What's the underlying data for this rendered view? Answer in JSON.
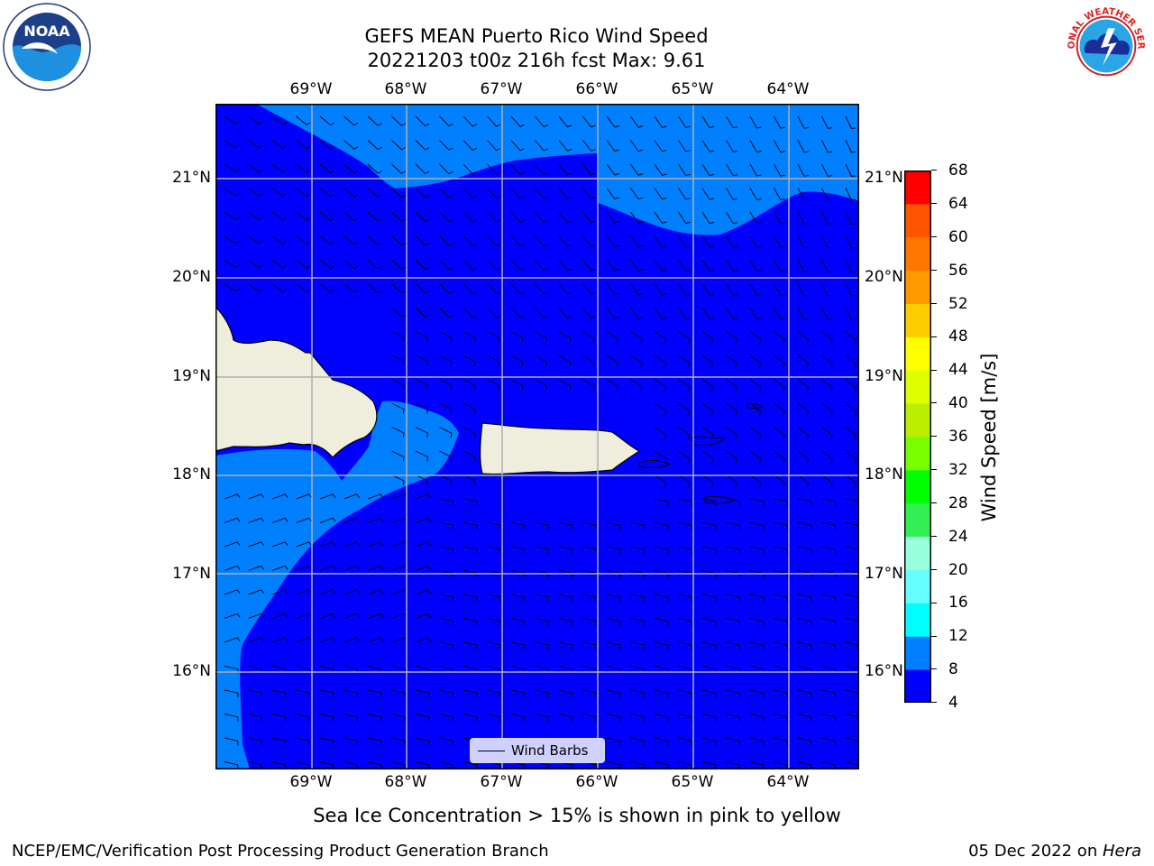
{
  "title": {
    "line1": "GEFS MEAN Puerto Rico Wind Speed",
    "line2": "20221203 t00z 216h fcst   Max: 9.61"
  },
  "map": {
    "lon_labels": [
      "69°W",
      "68°W",
      "67°W",
      "66°W",
      "65°W",
      "64°W"
    ],
    "lat_labels": [
      "21°N",
      "20°N",
      "19°N",
      "18°N",
      "17°N",
      "16°N"
    ],
    "extent": {
      "lon_min": -70.0,
      "lon_max": -63.25,
      "lat_min": 15.0,
      "lat_max": 21.75
    },
    "fill_colors": {
      "4-8": "#0000ff",
      "8-12": "#0080ff",
      "land": "#efeedd",
      "gridline": "#b0b0b0"
    },
    "legend_label": "Wind Barbs"
  },
  "colorbar": {
    "label": "Wind Speed [m/s]",
    "ticks": [
      "68",
      "64",
      "60",
      "56",
      "52",
      "48",
      "44",
      "40",
      "36",
      "32",
      "28",
      "24",
      "20",
      "16",
      "12",
      "8",
      "4"
    ],
    "colors": [
      "#0000ff",
      "#0080ff",
      "#00ffff",
      "#66ffff",
      "#99ffdd",
      "#33ee55",
      "#00ff00",
      "#77ff00",
      "#bbee00",
      "#ddff00",
      "#ffff00",
      "#ffcc00",
      "#ff9900",
      "#ff7700",
      "#ff5500",
      "#ff0000"
    ]
  },
  "note": "Sea Ice Concentration > 15% is shown in pink to yellow",
  "footer": {
    "left": "NCEP/EMC/Verification Post Processing Product Generation Branch",
    "right_date": "05 Dec 2022 on ",
    "right_machine": "Hera"
  },
  "logos": {
    "noaa": {
      "text": "NOAA",
      "ring_text": "NATIONAL OCEANIC AND ATMOSPHERIC ADMINISTRATION · U.S. DEPARTMENT OF COMMERCE"
    },
    "nws": {
      "ring_text": "NATIONAL WEATHER SERVICE"
    }
  }
}
